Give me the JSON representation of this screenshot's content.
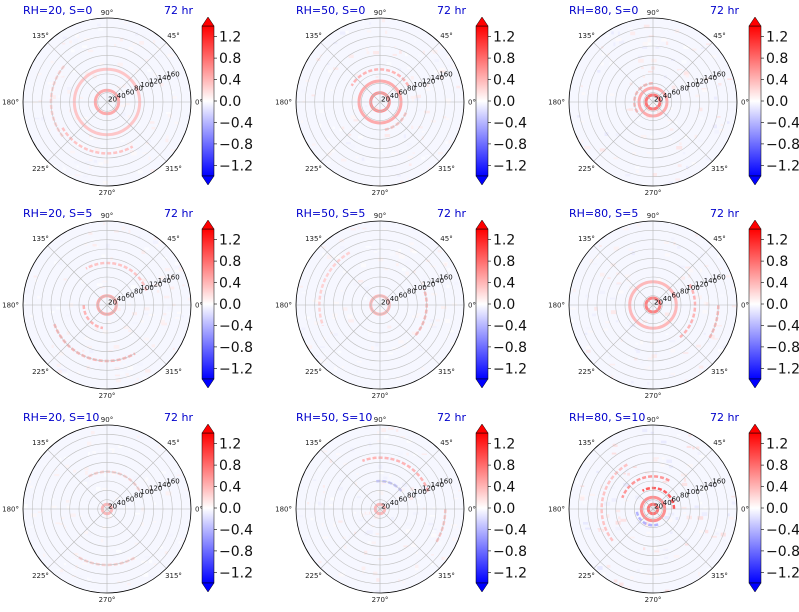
{
  "chart_data": {
    "type": "polar-heatmap",
    "layout": "3x3",
    "radial_ticks": [
      "20",
      "40",
      "60",
      "80",
      "100",
      "120",
      "140",
      "160"
    ],
    "angular_ticks": [
      "0°",
      "45°",
      "90°",
      "135°",
      "180°",
      "225°",
      "270°",
      "315°"
    ],
    "colorbar": {
      "cmap": "bwr",
      "vmin": -1.4,
      "vmax": 1.4,
      "ticks": [
        "1.2",
        "0.8",
        "0.4",
        "0.0",
        "−0.4",
        "−0.8",
        "−1.2"
      ],
      "extend": "both"
    },
    "colors": {
      "positive": "#ff0000",
      "negative": "#0000ff",
      "title": "#0000cc"
    },
    "panels": [
      {
        "title": "RH=20, S=0",
        "time": "72 hr",
        "intensity": 0.45,
        "rings": [
          {
            "r": 25,
            "v": 0.6
          },
          {
            "r": 70,
            "v": 0.4
          }
        ],
        "arcs": [
          {
            "r": 110,
            "a1": 210,
            "a2": 300,
            "v": 0.4
          },
          {
            "r": 120,
            "a1": 140,
            "a2": 220,
            "v": 0.3
          }
        ]
      },
      {
        "title": "RH=50, S=0",
        "time": "72 hr",
        "intensity": 0.55,
        "rings": [
          {
            "r": 20,
            "v": 0.8
          },
          {
            "r": 45,
            "v": 0.6
          }
        ],
        "arcs": [
          {
            "r": 70,
            "a1": 30,
            "a2": 150,
            "v": 0.5
          },
          {
            "r": 60,
            "a1": 280,
            "a2": 340,
            "v": 0.4
          }
        ]
      },
      {
        "title": "RH=80, S=0",
        "time": "72 hr",
        "intensity": 0.7,
        "rings": [
          {
            "r": 15,
            "v": 1.0
          },
          {
            "r": 30,
            "v": 0.6
          }
        ],
        "arcs": [
          {
            "r": 40,
            "a1": 90,
            "a2": 220,
            "v": 0.5
          }
        ]
      },
      {
        "title": "RH=20, S=5",
        "time": "72 hr",
        "intensity": 0.45,
        "rings": [
          {
            "r": 20,
            "v": 0.6
          }
        ],
        "arcs": [
          {
            "r": 120,
            "a1": 200,
            "a2": 300,
            "v": 0.5
          },
          {
            "r": 90,
            "a1": 20,
            "a2": 120,
            "v": 0.4
          },
          {
            "r": 50,
            "a1": 180,
            "a2": 260,
            "v": 0.5
          }
        ]
      },
      {
        "title": "RH=50, S=5",
        "time": "72 hr",
        "intensity": 0.4,
        "rings": [
          {
            "r": 20,
            "v": 0.5
          }
        ],
        "arcs": [
          {
            "r": 100,
            "a1": 320,
            "a2": 380,
            "v": 0.5
          },
          {
            "r": 130,
            "a1": 120,
            "a2": 200,
            "v": 0.3
          }
        ]
      },
      {
        "title": "RH=80, S=5",
        "time": "72 hr",
        "intensity": 0.55,
        "rings": [
          {
            "r": 15,
            "v": 0.9
          },
          {
            "r": 50,
            "v": 0.5
          }
        ],
        "arcs": [
          {
            "r": 90,
            "a1": 310,
            "a2": 390,
            "v": 0.5
          },
          {
            "r": 140,
            "a1": 330,
            "a2": 360,
            "v": 0.5
          }
        ]
      },
      {
        "title": "RH=20, S=10",
        "time": "72 hr",
        "intensity": 0.35,
        "rings": [
          {
            "r": 10,
            "v": 0.5
          }
        ],
        "arcs": [
          {
            "r": 80,
            "a1": 30,
            "a2": 120,
            "v": 0.3
          },
          {
            "r": 120,
            "a1": 240,
            "a2": 300,
            "v": 0.3
          }
        ]
      },
      {
        "title": "RH=50, S=10",
        "time": "72 hr",
        "intensity": 0.5,
        "rings": [
          {
            "r": 10,
            "v": 0.5
          }
        ],
        "arcs": [
          {
            "r": 110,
            "a1": 20,
            "a2": 110,
            "v": 0.5
          },
          {
            "r": 60,
            "a1": 40,
            "a2": 100,
            "v": -0.4
          },
          {
            "r": 140,
            "a1": 330,
            "a2": 360,
            "v": 0.4
          }
        ]
      },
      {
        "title": "RH=80, S=10",
        "time": "72 hr",
        "intensity": 0.8,
        "rings": [
          {
            "r": 10,
            "v": 1.0
          },
          {
            "r": 25,
            "v": 0.8
          }
        ],
        "arcs": [
          {
            "r": 45,
            "a1": 0,
            "a2": 120,
            "v": 1.1
          },
          {
            "r": 70,
            "a1": 60,
            "a2": 160,
            "v": 0.7
          },
          {
            "r": 35,
            "a1": 190,
            "a2": 290,
            "v": -0.5
          },
          {
            "r": 110,
            "a1": 120,
            "a2": 220,
            "v": 0.4
          }
        ]
      }
    ]
  }
}
